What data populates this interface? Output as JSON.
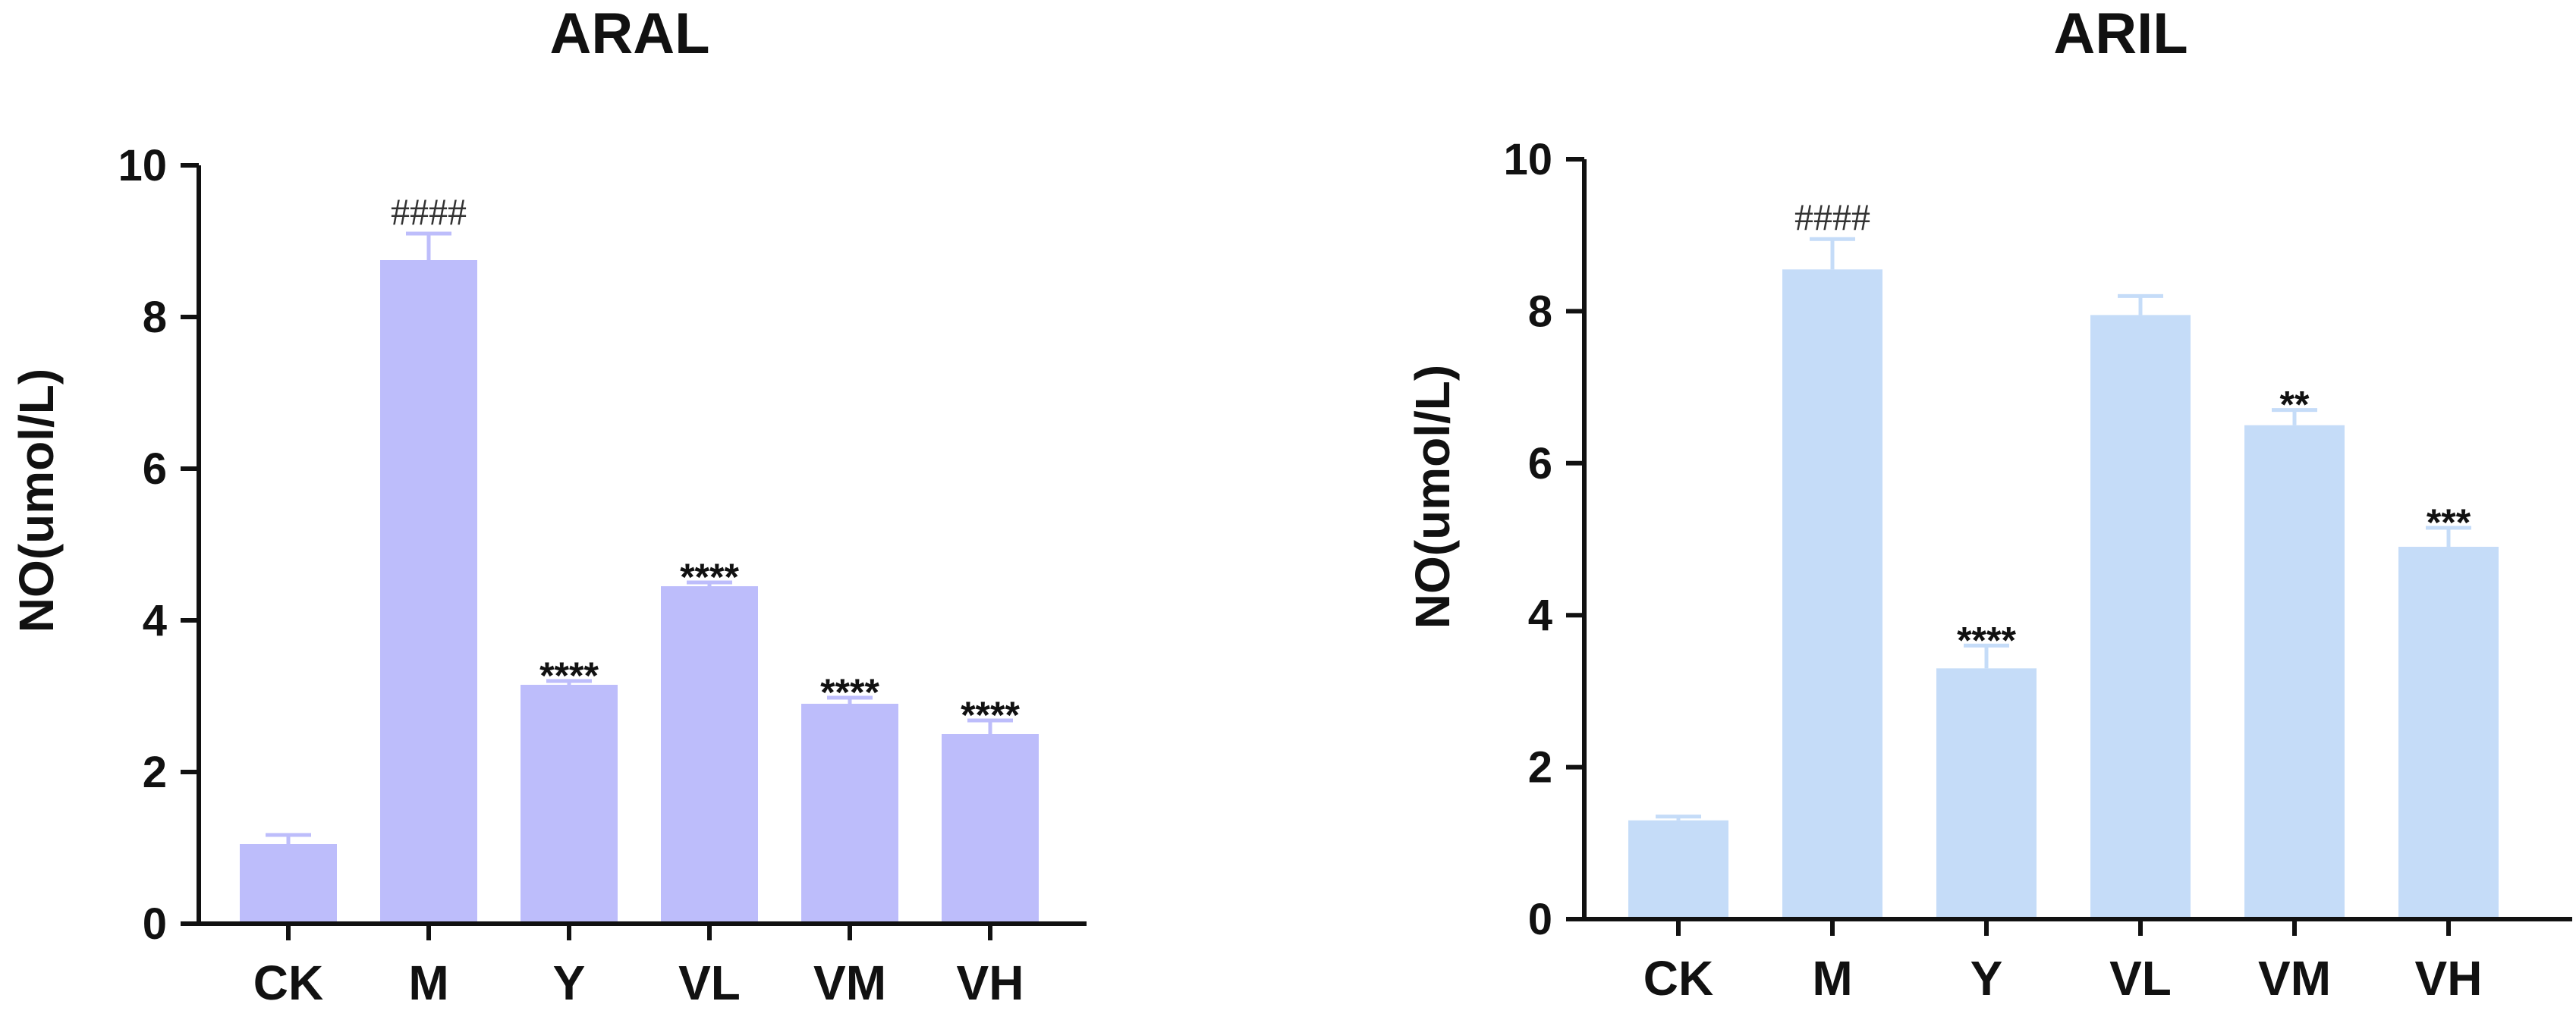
{
  "chart_data": [
    {
      "type": "bar",
      "title": "ARAL",
      "xlabel": "",
      "ylabel": "NO(umol/L)",
      "ylim": [
        0,
        10
      ],
      "yticks": [
        "0",
        "2",
        "4",
        "6",
        "8",
        "10"
      ],
      "categories": [
        "CK",
        "M",
        "Y",
        "VL",
        "VM",
        "VH"
      ],
      "values": [
        1.05,
        8.75,
        3.15,
        4.45,
        2.9,
        2.5
      ],
      "errors": [
        0.12,
        0.35,
        0.05,
        0.05,
        0.08,
        0.18
      ],
      "annotations": [
        "",
        "####",
        "****",
        "****",
        "****",
        "****"
      ],
      "bar_color": "#bdbdfb",
      "grid": false
    },
    {
      "type": "bar",
      "title": "ARIL",
      "xlabel": "",
      "ylabel": "NO(umol/L)",
      "ylim": [
        0,
        10
      ],
      "yticks": [
        "0",
        "2",
        "4",
        "6",
        "8",
        "10"
      ],
      "categories": [
        "CK",
        "M",
        "Y",
        "VL",
        "VM",
        "VH"
      ],
      "values": [
        1.3,
        8.55,
        3.3,
        7.95,
        6.5,
        4.9
      ],
      "errors": [
        0.05,
        0.4,
        0.3,
        0.25,
        0.2,
        0.25
      ],
      "annotations": [
        "",
        "####",
        "****",
        "",
        "**",
        "***"
      ],
      "bar_color": "#c5dcf8",
      "grid": false
    }
  ]
}
